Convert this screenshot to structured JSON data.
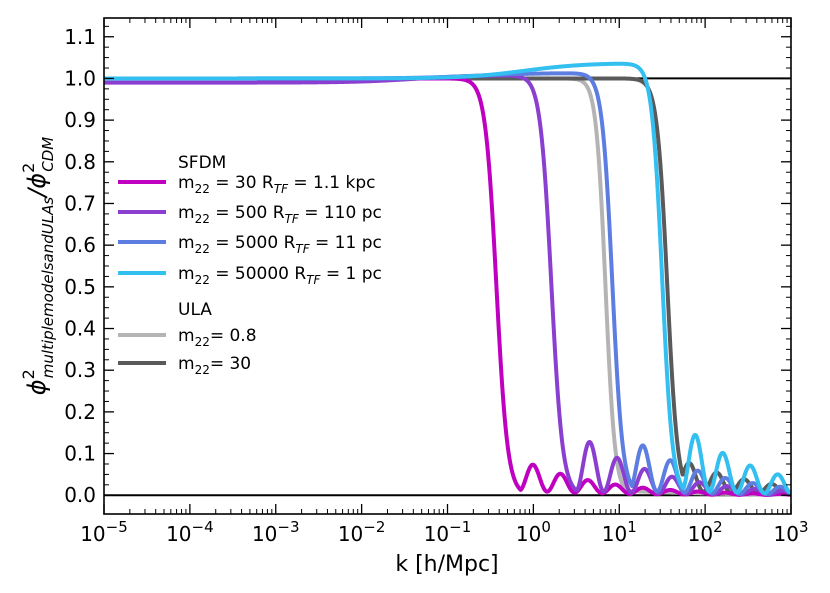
{
  "chart_data": {
    "type": "line",
    "title": "",
    "xlabel": "k [h/Mpc]",
    "ylabel": {
      "main": "ϕ",
      "sup": "2",
      "sub": "multiplemodelsandULAs",
      "sep": "/ϕ",
      "sup2": "2",
      "sub2": "CDM"
    },
    "xscale": "log",
    "xlim_log10": [
      -5,
      3
    ],
    "ylim": [
      -0.045,
      1.145
    ],
    "x_ticks": [
      {
        "base": "10",
        "exp": "−5"
      },
      {
        "base": "10",
        "exp": "−4"
      },
      {
        "base": "10",
        "exp": "−3"
      },
      {
        "base": "10",
        "exp": "−2"
      },
      {
        "base": "10",
        "exp": "−1"
      },
      {
        "base": "10",
        "exp": "0"
      },
      {
        "base": "10",
        "exp": "1"
      },
      {
        "base": "10",
        "exp": "2"
      },
      {
        "base": "10",
        "exp": "3"
      }
    ],
    "y_ticks": [
      0.0,
      0.1,
      0.2,
      0.3,
      0.4,
      0.5,
      0.6,
      0.7,
      0.8,
      0.9,
      1.0,
      1.1
    ],
    "y_tick_labels": [
      "0.0",
      "0.1",
      "0.2",
      "0.3",
      "0.4",
      "0.5",
      "0.6",
      "0.7",
      "0.8",
      "0.9",
      "1.0",
      "1.1"
    ],
    "reference_lines": [
      1.0,
      0.0
    ],
    "legend_position": "center-left",
    "legend": {
      "group_sfdm": "SFDM",
      "group_ula": "ULA",
      "entries": [
        {
          "label": "m₂₂ = 30 Rₜƒ = 1.1 kpc",
          "main": "m",
          "sub": "22",
          "text1": " = 30 R",
          "sub2": "TF",
          "text2": " = 1.1 kpc",
          "color": "#c000c0"
        },
        {
          "label": "m₂₂ = 500 Rₜƒ = 110 pc",
          "main": "m",
          "sub": "22",
          "text1": " = 500 R",
          "sub2": "TF",
          "text2": " = 110 pc",
          "color": "#8b3fd0"
        },
        {
          "label": "m₂₂ = 5000 Rₜƒ = 11 pc",
          "main": "m",
          "sub": "22",
          "text1": " = 5000 R",
          "sub2": "TF",
          "text2": " = 11 pc",
          "color": "#5b7ee0"
        },
        {
          "label": "m₂₂ = 50000 Rₜƒ = 1 pc",
          "main": "m",
          "sub": "22",
          "text1": " = 50000 R",
          "sub2": "TF",
          "text2": " = 1 pc",
          "color": "#33bff0"
        },
        {
          "label": "m₂₂= 0.8",
          "main": "m",
          "sub": "22",
          "text1": "= 0.8",
          "sub2": "",
          "text2": "",
          "color": "#b4b4b4"
        },
        {
          "label": "m₂₂= 30",
          "main": "m",
          "sub": "22",
          "text1": "= 30",
          "sub2": "",
          "text2": "",
          "color": "#5a5a5a"
        }
      ]
    },
    "series": [
      {
        "name": "ULA m22=0.8",
        "color": "#b4b4b4",
        "plateau": 1.0,
        "bump_amp": 0.0,
        "cut_log10k": 0.84,
        "cut_width": 0.055,
        "tail_start": 0.98,
        "osc_peak": 0.0
      },
      {
        "name": "ULA m22=30",
        "color": "#5a5a5a",
        "plateau": 1.0,
        "bump_amp": 0.0,
        "cut_log10k": 1.56,
        "cut_width": 0.06,
        "tail_start": 1.66,
        "osc_peak": 0.08
      },
      {
        "name": "SFDM m22=30",
        "color": "#c000c0",
        "plateau": 1.0,
        "bump_amp": 0.0,
        "cut_log10k": -0.43,
        "cut_width": 0.065,
        "tail_start": -0.16,
        "osc_peak": 0.075
      },
      {
        "name": "SFDM m22=500",
        "color": "#8b3fd0",
        "plateau": 0.99,
        "bump_amp": 0.018,
        "cut_log10k": 0.21,
        "cut_width": 0.065,
        "tail_start": 0.5,
        "osc_peak": 0.14
      },
      {
        "name": "SFDM m22=5000",
        "color": "#5b7ee0",
        "plateau": 1.0,
        "bump_amp": 0.013,
        "cut_log10k": 0.92,
        "cut_width": 0.06,
        "tail_start": 1.12,
        "osc_peak": 0.13
      },
      {
        "name": "SFDM m22=50000",
        "color": "#33bff0",
        "plateau": 1.0,
        "bump_amp": 0.037,
        "cut_log10k": 1.5,
        "cut_width": 0.06,
        "tail_start": 1.73,
        "osc_peak": 0.16
      }
    ]
  }
}
